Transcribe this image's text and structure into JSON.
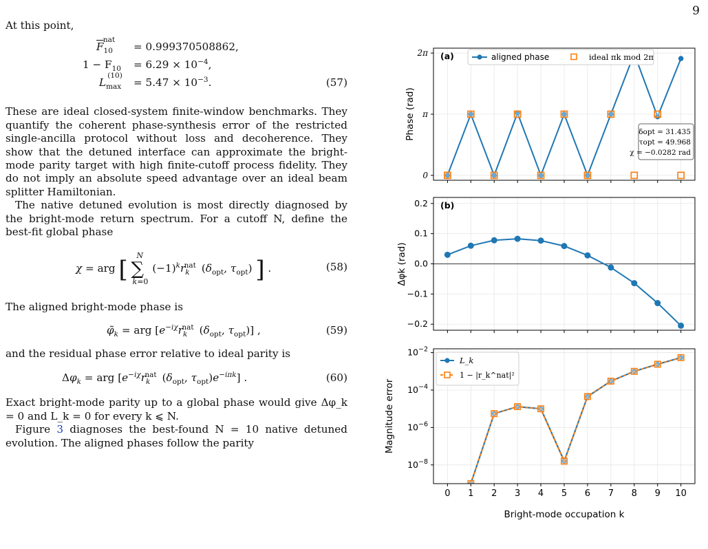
{
  "page_number": "9",
  "text": {
    "intro": "At this point,",
    "eq57_line1_lhs": "F",
    "eq57_line1_rhs": "= 0.999370508862,",
    "eq57_line2_lhs": "1 − F",
    "eq57_line2_rhs": "= 6.29 × 10",
    "eq57_line2_exp": "−4",
    "eq57_line3_lhs": "L",
    "eq57_line3_rhs": "= 5.47 × 10",
    "eq57_line3_exp": "−3",
    "eq57_num": "(57)",
    "para1": "These are ideal closed-system finite-window benchmarks. They quantify the coherent phase-synthesis error of the restricted single-ancilla protocol without loss and decoherence. They show that the detuned interface can approximate the bright-mode parity target with high finite-cutoff process fidelity. They do not imply an absolute speed advantage over an ideal beam splitter Hamiltonian.",
    "para2": "The native detuned evolution is most directly diagnosed by the bright-mode return spectrum. For a cutoff N, define the best-fit global phase",
    "eq58_num": "(58)",
    "para3": "The aligned bright-mode phase is",
    "eq59_num": "(59)",
    "para4": "and the residual phase error relative to ideal parity is",
    "eq60_num": "(60)",
    "para5": "Exact bright-mode parity up to a global phase would give Δφ_k = 0 and L_k = 0 for every k ⩽ N.",
    "para6_pre": "Figure ",
    "para6_ref": "3",
    "para6_post": " diagnoses the best-found N = 10 native detuned evolution. The aligned phases follow the parity"
  },
  "figure": {
    "panel_a": {
      "label": "(a)",
      "ylabel": "Phase (rad)",
      "yticks": [
        "0",
        "π",
        "2π"
      ],
      "legend": [
        "aligned phase",
        "ideal πk mod 2π"
      ],
      "annotation": [
        "δopt = 31.435",
        "τopt = 49.968",
        "χ = −0.0282 rad"
      ]
    },
    "panel_b": {
      "label": "(b)",
      "ylabel": "Δφk (rad)",
      "yticks": [
        "−0.2",
        "−0.1",
        "0.0",
        "0.1",
        "0.2"
      ]
    },
    "panel_c": {
      "ylabel": "Magnitude error",
      "yticks": [
        "10^−8",
        "10^−6",
        "10^−4",
        "10^−2"
      ],
      "legend": [
        "L_k",
        "1 − |r_k^nat|²"
      ]
    },
    "xlabel": "Bright-mode occupation k",
    "xticks": [
      "0",
      "1",
      "2",
      "3",
      "4",
      "5",
      "6",
      "7",
      "8",
      "9",
      "10"
    ],
    "colors": {
      "blue": "#1f77b4",
      "orange": "#ff7f0e"
    }
  },
  "chart_data": [
    {
      "type": "line",
      "panel": "(a)",
      "x": [
        0,
        1,
        2,
        3,
        4,
        5,
        6,
        7,
        8,
        9,
        10
      ],
      "series": [
        {
          "name": "aligned phase",
          "unit": "π rad",
          "values": [
            0,
            1.0,
            0,
            1.02,
            0,
            1.0,
            0,
            1.0,
            1.99,
            0.96,
            1.91
          ]
        },
        {
          "name": "ideal πk mod 2π",
          "unit": "π rad",
          "values": [
            0,
            1,
            0,
            1,
            0,
            1,
            0,
            1,
            0,
            1,
            0
          ]
        }
      ],
      "ylabel": "Phase (rad)",
      "ylim": [
        0,
        2
      ]
    },
    {
      "type": "line",
      "panel": "(b)",
      "x": [
        0,
        1,
        2,
        3,
        4,
        5,
        6,
        7,
        8,
        9,
        10
      ],
      "series": [
        {
          "values": [
            0.03,
            0.06,
            0.078,
            0.083,
            0.077,
            0.059,
            0.028,
            -0.012,
            -0.064,
            -0.13,
            -0.205
          ]
        }
      ],
      "ylabel": "Δφk (rad)",
      "ylim": [
        -0.22,
        0.22
      ]
    },
    {
      "type": "line",
      "panel": "(c)",
      "x": [
        1,
        2,
        3,
        4,
        5,
        6,
        7,
        8,
        9,
        10
      ],
      "series": [
        {
          "name": "L_k",
          "values": [
            1e-09,
            5.5e-06,
            1.3e-05,
            1e-05,
            1.6e-08,
            4.5e-05,
            0.0003,
            0.001,
            0.0024,
            0.0054
          ]
        },
        {
          "name": "1 − |r_k^nat|²",
          "values": [
            1e-09,
            5.5e-06,
            1.3e-05,
            1e-05,
            1.6e-08,
            4.5e-05,
            0.0003,
            0.001,
            0.0024,
            0.0054
          ]
        }
      ],
      "ylabel": "Magnitude error",
      "yscale": "log",
      "ylim": [
        1e-09,
        0.016
      ],
      "xlabel": "Bright-mode occupation k"
    }
  ]
}
